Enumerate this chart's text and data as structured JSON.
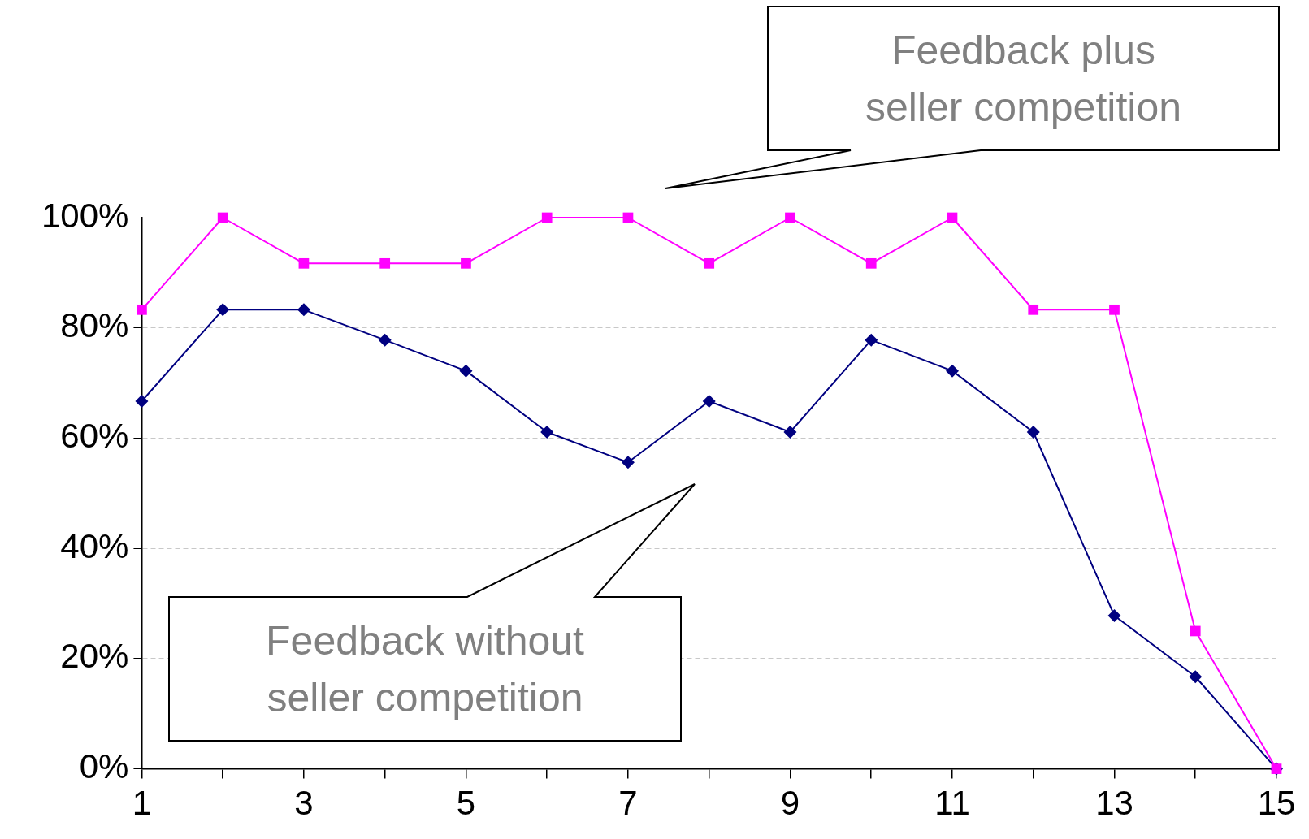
{
  "chart_data": {
    "type": "line",
    "x": [
      1,
      2,
      3,
      4,
      5,
      6,
      7,
      8,
      9,
      10,
      11,
      12,
      13,
      14,
      15
    ],
    "series": [
      {
        "color": "#ff00ff",
        "marker": "square",
        "values": [
          83.3,
          100,
          91.7,
          91.7,
          91.7,
          100,
          100,
          91.7,
          100,
          91.7,
          100,
          83.3,
          83.3,
          25,
          0
        ]
      },
      {
        "color": "#000080",
        "marker": "diamond",
        "values": [
          66.7,
          83.3,
          83.3,
          77.8,
          72.2,
          61.1,
          55.6,
          66.7,
          61.1,
          77.8,
          72.2,
          61.1,
          27.8,
          16.7,
          0
        ]
      }
    ],
    "xlim": [
      1,
      15
    ],
    "xticks": [
      1,
      {
        "value": 2,
        "label": null
      },
      3,
      {
        "value": 4,
        "label": null
      },
      5,
      {
        "value": 6,
        "label": null
      },
      7,
      {
        "value": 8,
        "label": null
      },
      9,
      {
        "value": 10,
        "label": null
      },
      11,
      {
        "value": 12,
        "label": null
      },
      13,
      {
        "value": 14,
        "label": null
      },
      15
    ],
    "ylim": [
      0,
      100
    ],
    "yticks": [
      {
        "value": 0,
        "label": "0%"
      },
      {
        "value": 20,
        "label": "20%"
      },
      {
        "value": 40,
        "label": "40%"
      },
      {
        "value": 60,
        "label": "60%"
      },
      {
        "value": 80,
        "label": "80%"
      },
      {
        "value": 100,
        "label": "100%"
      }
    ],
    "annotations": [
      "Feedback plus seller competition",
      "Feedback without seller competition"
    ],
    "grid": "y",
    "legend": false,
    "line_style": "solid"
  }
}
